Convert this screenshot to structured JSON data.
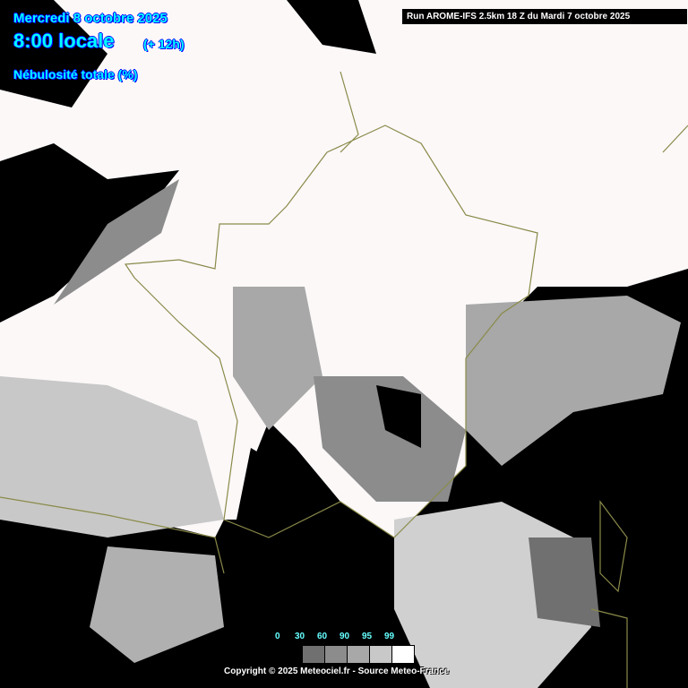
{
  "header": {
    "date": "Mercredi 8 octobre 2025",
    "hour": "8:00 locale",
    "lead": "(+ 12h)",
    "parameter": "Nébulosité totale (%)",
    "run": "Run AROME-IFS 2.5km 18 Z du Mardi 7 octobre 2025"
  },
  "legend": {
    "labels": [
      "0",
      "30",
      "60",
      "90",
      "95",
      "99"
    ],
    "colors": [
      "#707070",
      "#8c8c8c",
      "#a8a8a8",
      "#c8c8c8",
      "#ffffff"
    ]
  },
  "footer": {
    "copyright": "Copyright © 2025 Meteociel.fr - Source Meteo-France"
  },
  "colors": {
    "text": "#00ffff",
    "text_outline": "#0000ff",
    "borders": "#8a8a4a",
    "clear_sky": "#000000",
    "overcast": "#ffffff"
  }
}
